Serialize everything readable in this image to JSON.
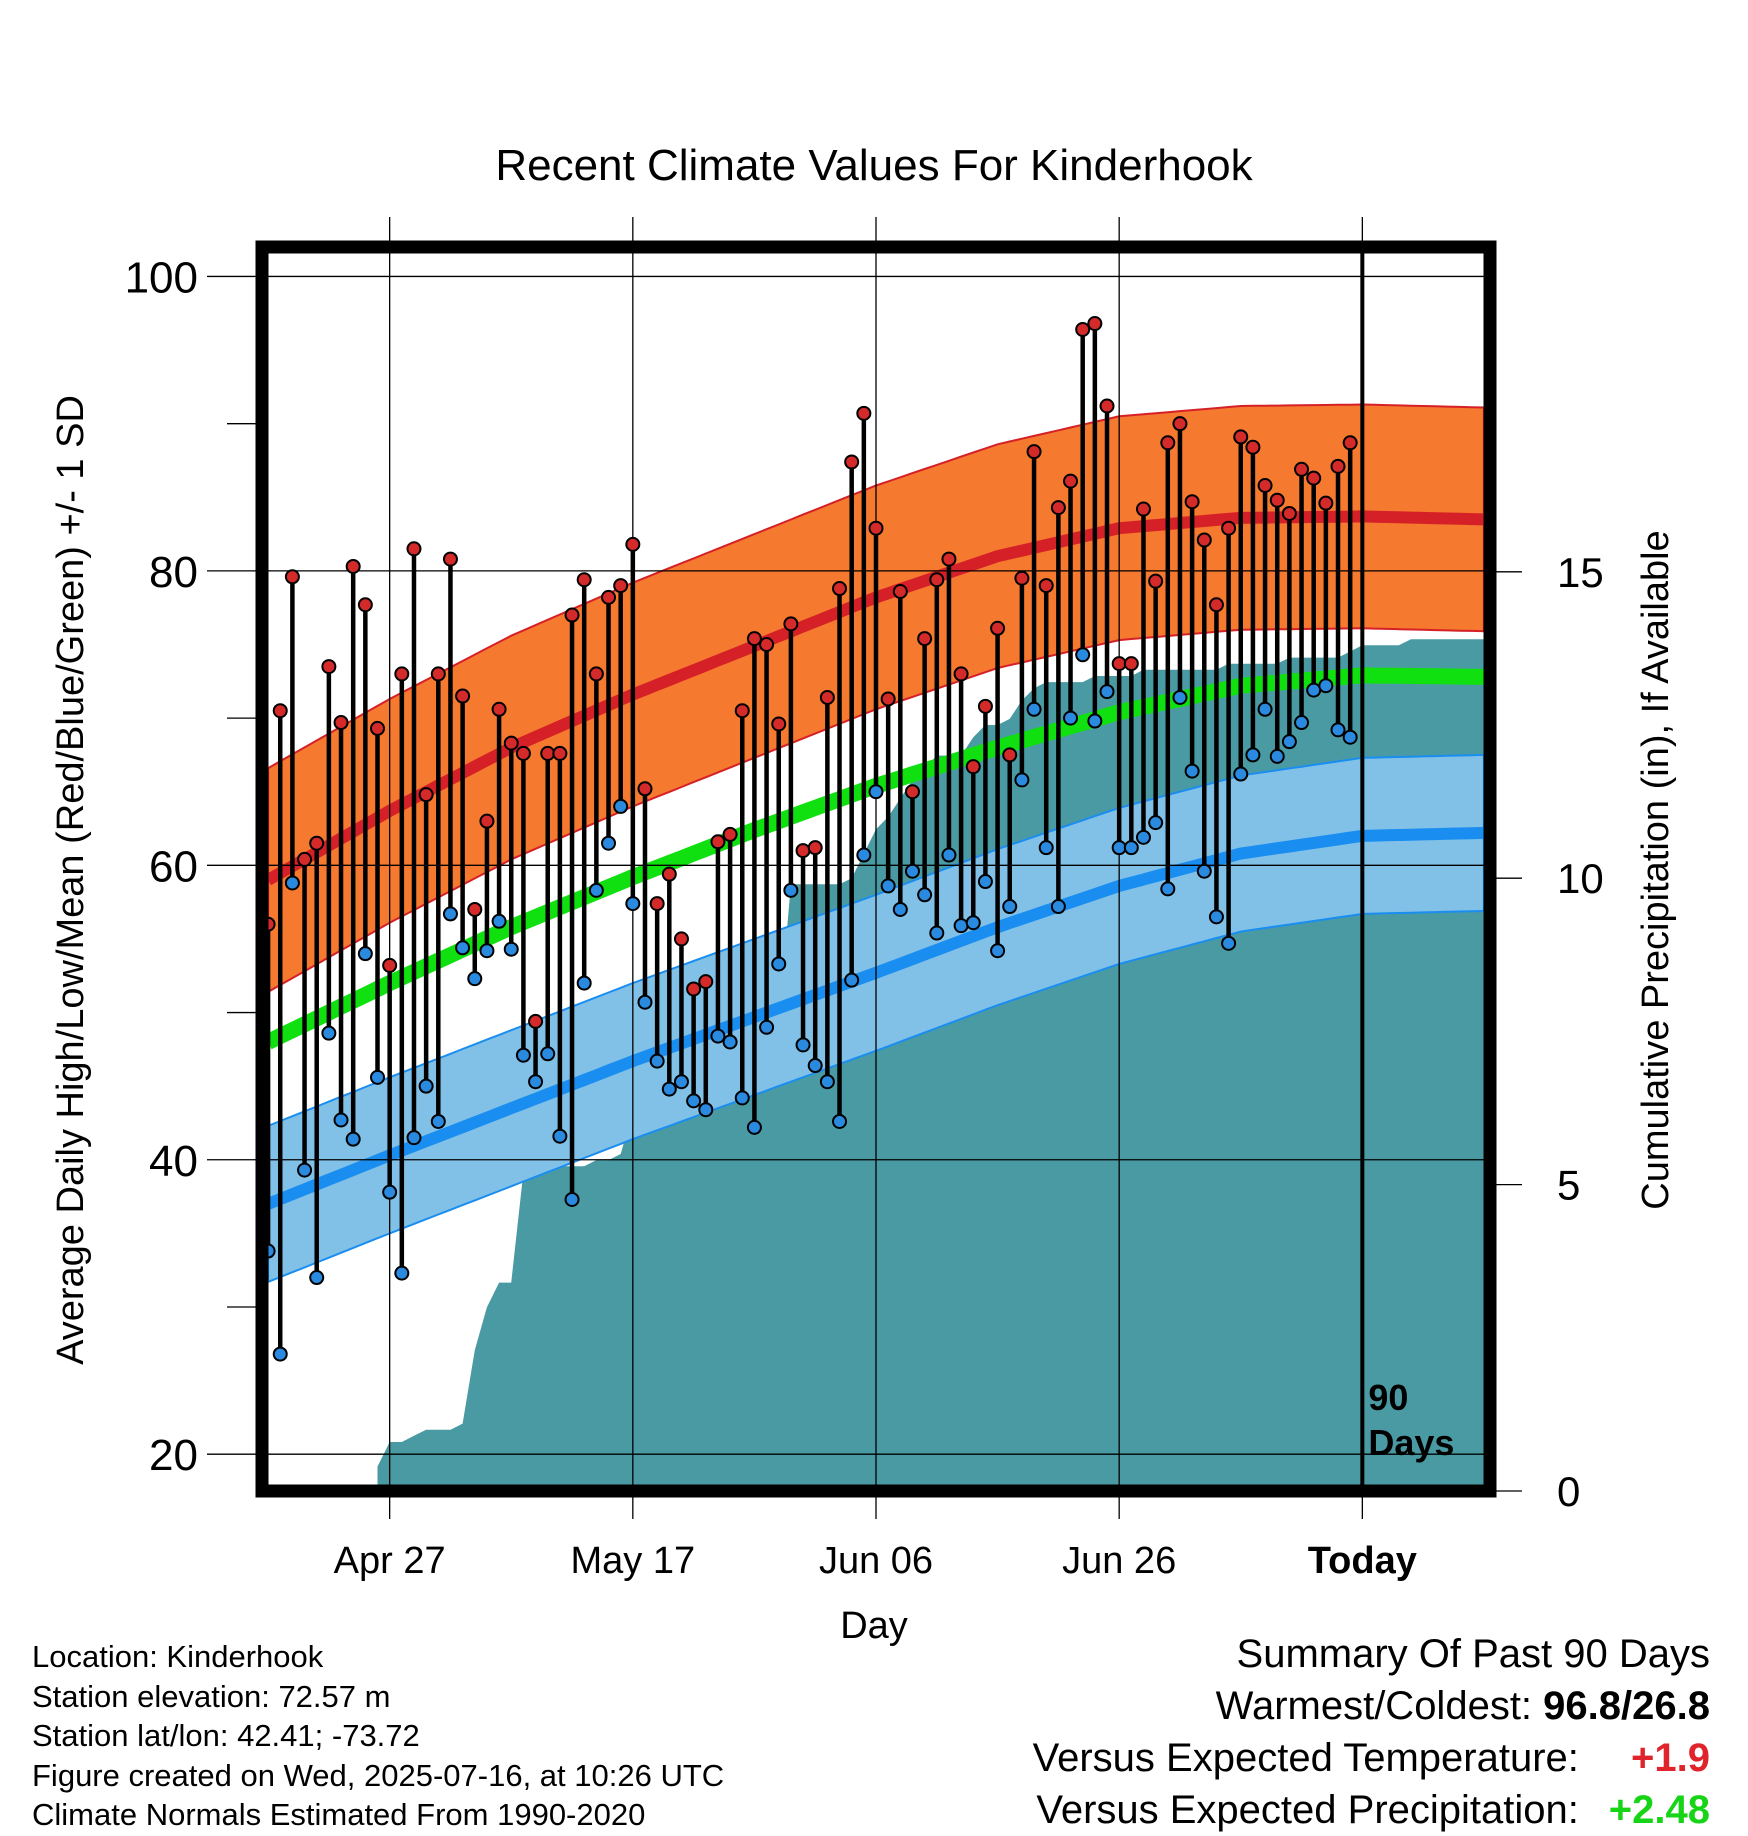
{
  "chart_data": {
    "type": "line",
    "title": "Recent Climate Values For Kinderhook",
    "xlabel": "Day",
    "ylabel": "Average Daily High/Low/Mean (Red/Blue/Green) +/- 1 SD",
    "y2label": "Cumulative Precipitation (in), If Available",
    "ylim": [
      17.5,
      102
    ],
    "y2lim": [
      0,
      20.3
    ],
    "xlim": [
      -0.5,
      100.5
    ],
    "x_ticks": [
      {
        "x": 10,
        "label": "Apr 27"
      },
      {
        "x": 30,
        "label": "May 17"
      },
      {
        "x": 50,
        "label": "Jun 06"
      },
      {
        "x": 70,
        "label": "Jun 26"
      },
      {
        "x": 90,
        "label": "Today"
      }
    ],
    "y_ticks": [
      20,
      40,
      60,
      80,
      100
    ],
    "y2_ticks": [
      0,
      5,
      10,
      15
    ],
    "today_x": 90,
    "today_label_lines": [
      "90",
      "Days"
    ],
    "grid": true,
    "normals": {
      "x": [
        0,
        10,
        20,
        30,
        40,
        50,
        60,
        70,
        80,
        90,
        100
      ],
      "high_mean": [
        59,
        63.7,
        68,
        71.6,
        74.9,
        78.2,
        81,
        82.9,
        83.6,
        83.7,
        83.5
      ],
      "high_sd": 7.6,
      "mean": [
        48,
        52,
        55.8,
        59.2,
        62.4,
        65.4,
        68,
        70.4,
        72.2,
        72.9,
        72.8
      ],
      "mean_sd": 0,
      "low_mean": [
        37,
        40.3,
        43.5,
        46.7,
        49.7,
        52.7,
        55.8,
        58.6,
        60.8,
        62,
        62.2
      ],
      "low_sd": 5.3
    },
    "series": [
      {
        "name": "High",
        "color": "#d72027",
        "values": [
          56,
          70.5,
          79.6,
          60.4,
          61.5,
          73.5,
          69.7,
          80.3,
          77.7,
          69.3,
          53.2,
          73.0,
          81.5,
          64.8,
          73.0,
          80.8,
          71.5,
          57.0,
          63.0,
          70.6,
          68.3,
          67.6,
          49.4,
          67.6,
          67.6,
          77.0,
          79.4,
          73.0,
          78.2,
          79.0,
          81.8,
          65.2,
          57.4,
          59.4,
          55.0,
          51.6,
          52.1,
          61.6,
          62.1,
          70.5,
          75.4,
          75.0,
          69.6,
          76.4,
          61.0,
          61.2,
          71.4,
          78.8,
          87.4,
          90.7,
          82.9,
          71.3,
          78.6,
          65.0,
          75.4,
          79.4,
          80.8,
          73.0,
          66.7,
          70.8,
          76.1,
          67.5,
          79.5,
          88.1,
          79.0,
          84.3,
          86.1,
          96.4,
          96.8,
          91.2,
          73.7,
          73.7,
          84.2,
          79.3,
          88.7,
          90.0,
          84.7,
          82.1,
          77.7,
          82.9,
          89.1,
          88.4,
          85.8,
          84.8,
          83.9,
          86.9,
          86.3,
          84.6,
          87.1,
          88.7
        ]
      },
      {
        "name": "Low",
        "color": "#2b8cd9",
        "values": [
          33.8,
          26.8,
          58.8,
          39.3,
          32.0,
          48.6,
          42.7,
          41.4,
          54.0,
          45.6,
          37.8,
          32.3,
          41.5,
          45.0,
          42.6,
          56.7,
          54.4,
          52.3,
          54.2,
          56.2,
          54.3,
          47.1,
          45.3,
          47.2,
          41.6,
          37.3,
          52.0,
          58.3,
          61.5,
          64.0,
          57.4,
          50.7,
          46.7,
          44.8,
          45.3,
          44.0,
          43.4,
          48.4,
          48.0,
          44.2,
          42.2,
          49.0,
          53.3,
          58.3,
          47.8,
          46.4,
          45.3,
          42.6,
          52.2,
          60.7,
          65.0,
          58.6,
          57.0,
          59.6,
          58.0,
          55.4,
          60.7,
          55.9,
          56.1,
          58.9,
          54.2,
          57.2,
          65.8,
          70.6,
          61.2,
          57.2,
          70.0,
          74.3,
          69.8,
          71.8,
          61.2,
          61.2,
          61.9,
          62.9,
          58.4,
          71.4,
          66.4,
          59.6,
          56.5,
          54.7,
          66.2,
          67.5,
          70.6,
          67.4,
          68.4,
          69.7,
          71.9,
          72.2,
          69.2,
          68.7
        ]
      }
    ],
    "precip": {
      "x": [
        9,
        10,
        11,
        12,
        13,
        14,
        15,
        16,
        17,
        18,
        19,
        20,
        21,
        22,
        23,
        24,
        25,
        26,
        27,
        28,
        29,
        30,
        31,
        32,
        33,
        34,
        35,
        36,
        37,
        38,
        39,
        40,
        41,
        42,
        43,
        44,
        45,
        46,
        47,
        48,
        49,
        50,
        51,
        52,
        53,
        54,
        55,
        56,
        57,
        58,
        59,
        60,
        61,
        62,
        63,
        64,
        65,
        66,
        67,
        68,
        69,
        70,
        71,
        72,
        73,
        74,
        75,
        76,
        77,
        78,
        79,
        80,
        81,
        82,
        83,
        84,
        85,
        86,
        87,
        88,
        89,
        90,
        91,
        92,
        93,
        94,
        95,
        96,
        97,
        98,
        99,
        100
      ],
      "values": [
        0.4,
        0.8,
        0.8,
        0.9,
        1.0,
        1.0,
        1.0,
        1.1,
        2.3,
        3.0,
        3.4,
        3.4,
        5.2,
        5.3,
        5.3,
        5.3,
        5.3,
        5.3,
        5.4,
        5.4,
        5.5,
        6.2,
        6.2,
        6.3,
        6.3,
        6.4,
        6.8,
        7.0,
        7.1,
        7.1,
        7.1,
        7.1,
        7.1,
        7.6,
        9.9,
        9.9,
        9.9,
        9.9,
        9.9,
        10.0,
        10.4,
        10.8,
        11.0,
        11.3,
        11.6,
        11.8,
        12.0,
        12.0,
        12.0,
        12.3,
        12.5,
        12.5,
        12.6,
        12.9,
        13.1,
        13.2,
        13.2,
        13.2,
        13.2,
        13.3,
        13.3,
        13.3,
        13.3,
        13.4,
        13.4,
        13.4,
        13.4,
        13.4,
        13.4,
        13.4,
        13.5,
        13.5,
        13.5,
        13.5,
        13.5,
        13.6,
        13.6,
        13.6,
        13.6,
        13.6,
        13.7,
        13.8,
        13.8,
        13.8,
        13.8,
        13.9,
        13.9,
        13.9,
        13.9,
        13.9,
        13.9,
        13.9
      ]
    }
  },
  "footer": {
    "location": "Location: Kinderhook",
    "elevation": "Station elevation: 72.57 m",
    "latlon": "Station lat/lon: 42.41; -73.72",
    "created": "Figure created on Wed, 2025-07-16, at 10:26 UTC",
    "normals_period": "Climate Normals Estimated From 1990-2020"
  },
  "summary": {
    "title": "Summary Of Past 90 Days",
    "warm_cold_label": "Warmest/Coldest:",
    "warm_cold_value": "96.8/26.8",
    "temp_label": "Versus Expected Temperature:",
    "temp_value": "+1.9",
    "precip_label": "Versus Expected Precipitation:",
    "precip_value": "+2.48"
  },
  "colors": {
    "high_band": "#f5792f",
    "high_line": "#d62027",
    "mean_line": "#10e010",
    "low_band": "#82c1e7",
    "low_line": "#1a8ef0",
    "precip_fill": "#4a9aa3",
    "high_dot": "#d42a2a",
    "low_dot": "#2a8ae0"
  }
}
